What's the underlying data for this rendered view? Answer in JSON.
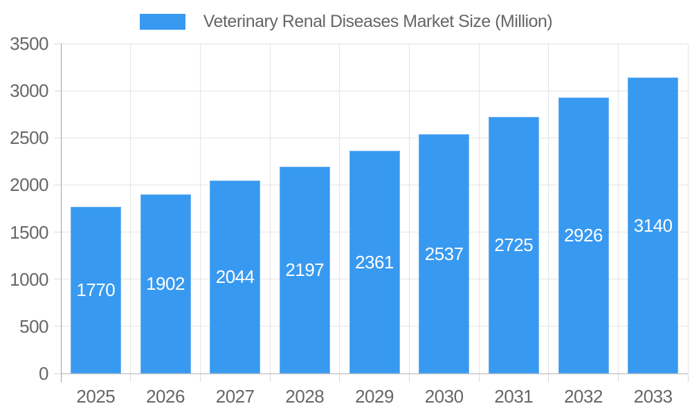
{
  "chart_data": {
    "type": "bar",
    "title": "Veterinary Renal Diseases Market Size (Million)",
    "categories": [
      "2025",
      "2026",
      "2027",
      "2028",
      "2029",
      "2030",
      "2031",
      "2032",
      "2033"
    ],
    "values": [
      1770,
      1902,
      2044,
      2197,
      2361,
      2537,
      2725,
      2926,
      3140
    ],
    "xlabel": "",
    "ylabel": "",
    "ylim": [
      0,
      3500
    ],
    "yticks": [
      0,
      500,
      1000,
      1500,
      2000,
      2500,
      3000,
      3500
    ],
    "grid": true,
    "legend_position": "top",
    "value_label_position": "inside-center",
    "colors": {
      "bar_fill": "#3899f0",
      "bar_border": "#6fb3f3",
      "value_text": "#ffffff",
      "axis_text": "#666666",
      "title_text": "#666666",
      "grid_line": "#e4e4e4",
      "zero_line": "#b5b5b5",
      "axis_line": "#9e9e9e",
      "tick_line": "#d9d9d9",
      "background": "#ffffff"
    }
  }
}
